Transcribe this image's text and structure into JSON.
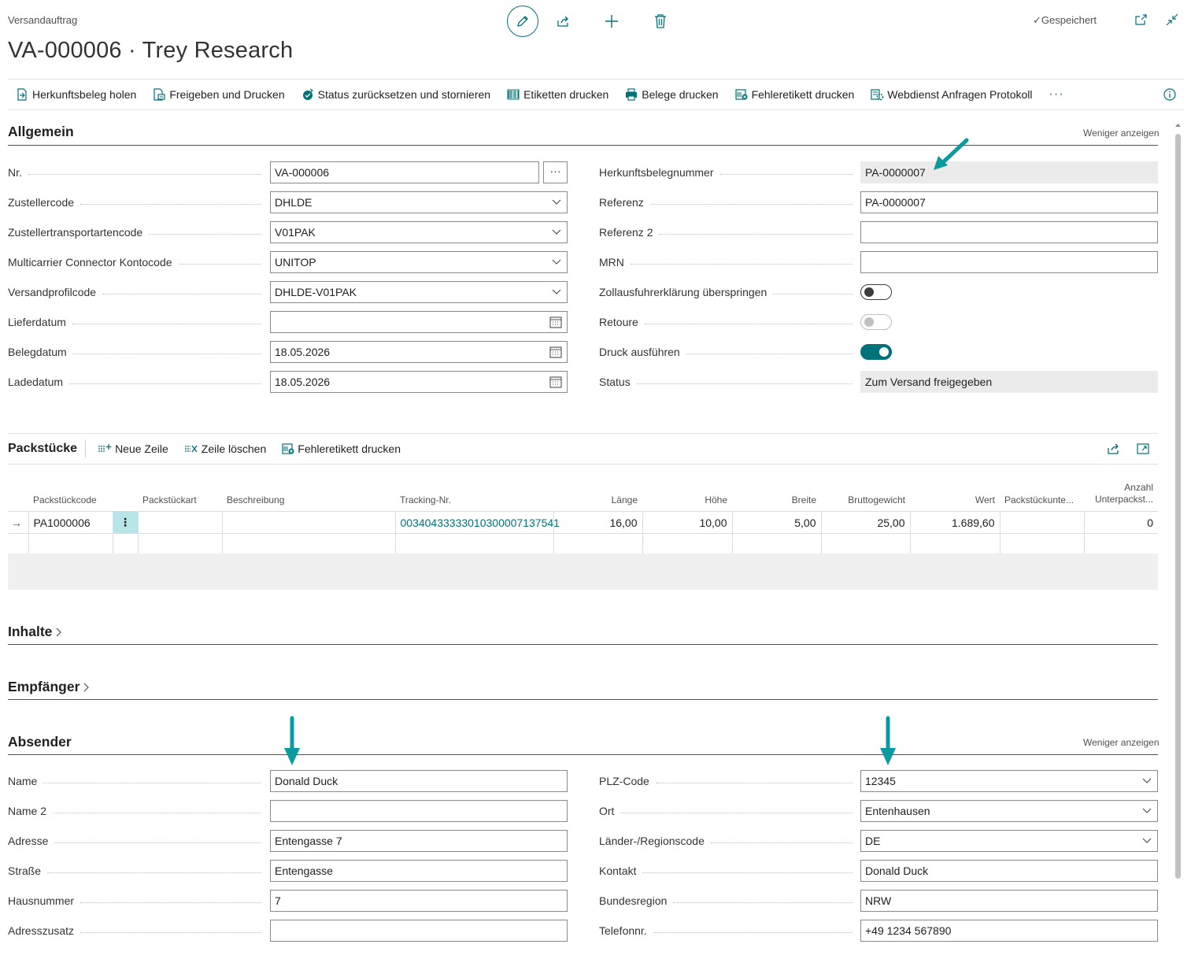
{
  "header": {
    "page_type": "Versandauftrag",
    "title": "VA-000006 · Trey Research",
    "saved_label": "Gespeichert"
  },
  "actions": [
    {
      "label": "Herkunftsbeleg holen",
      "icon": "fetch-doc-icon"
    },
    {
      "label": "Freigeben und Drucken",
      "icon": "release-print-icon"
    },
    {
      "label": "Status zurücksetzen und stornieren",
      "icon": "reset-status-icon"
    },
    {
      "label": "Etiketten drucken",
      "icon": "barcode-icon"
    },
    {
      "label": "Belege drucken",
      "icon": "printer-icon"
    },
    {
      "label": "Fehleretikett drucken",
      "icon": "error-label-icon"
    },
    {
      "label": "Webdienst Anfragen Protokoll",
      "icon": "web-log-icon"
    }
  ],
  "more_label": "···",
  "allgemein": {
    "title": "Allgemein",
    "less_label": "Weniger anzeigen",
    "left": [
      {
        "label": "Nr.",
        "value": "VA-000006",
        "type": "text-assist"
      },
      {
        "label": "Zustellercode",
        "value": "DHLDE",
        "type": "select"
      },
      {
        "label": "Zustellertransportartencode",
        "value": "V01PAK",
        "type": "select"
      },
      {
        "label": "Multicarrier Connector Kontocode",
        "value": "UNITOP",
        "type": "select"
      },
      {
        "label": "Versandprofilcode",
        "value": "DHLDE-V01PAK",
        "type": "select"
      },
      {
        "label": "Lieferdatum",
        "value": "",
        "type": "date"
      },
      {
        "label": "Belegdatum",
        "value": "18.05.2026",
        "type": "date"
      },
      {
        "label": "Ladedatum",
        "value": "18.05.2026",
        "type": "date"
      }
    ],
    "right": [
      {
        "label": "Herkunftsbelegnummer",
        "value": "PA-0000007",
        "type": "readonly"
      },
      {
        "label": "Referenz",
        "value": "PA-0000007",
        "type": "text"
      },
      {
        "label": "Referenz 2",
        "value": "",
        "type": "text"
      },
      {
        "label": "MRN",
        "value": "",
        "type": "text"
      },
      {
        "label": "Zollausfuhrerklärung überspringen",
        "value": "off",
        "type": "toggle"
      },
      {
        "label": "Retoure",
        "value": "off-disabled",
        "type": "toggle"
      },
      {
        "label": "Druck ausführen",
        "value": "on",
        "type": "toggle"
      },
      {
        "label": "Status",
        "value": "Zum Versand freigegeben",
        "type": "readonly"
      }
    ]
  },
  "packstuecke": {
    "title": "Packstücke",
    "actions": [
      {
        "label": "Neue Zeile",
        "icon": "new-line-icon"
      },
      {
        "label": "Zeile löschen",
        "icon": "delete-line-icon"
      },
      {
        "label": "Fehleretikett drucken",
        "icon": "error-label-icon"
      }
    ],
    "columns": [
      "Packstückcode",
      "Packstückart",
      "Beschreibung",
      "Tracking-Nr.",
      "Länge",
      "Höhe",
      "Breite",
      "Bruttogewicht",
      "Wert",
      "Packstückunte...",
      "Anzahl",
      "Unterpackst..."
    ],
    "rows": [
      {
        "code": "PA1000006",
        "art": "",
        "beschreibung": "",
        "tracking": "00340433333010300007137541",
        "laenge": "16,00",
        "hoehe": "10,00",
        "breite": "5,00",
        "brutto": "25,00",
        "wert": "1.689,60",
        "unter": "",
        "anzahl": "0"
      }
    ]
  },
  "inhalte": {
    "title": "Inhalte"
  },
  "empfaenger": {
    "title": "Empfänger"
  },
  "absender": {
    "title": "Absender",
    "less_label": "Weniger anzeigen",
    "left": [
      {
        "label": "Name",
        "value": "Donald Duck",
        "type": "text"
      },
      {
        "label": "Name 2",
        "value": "",
        "type": "text"
      },
      {
        "label": "Adresse",
        "value": "Entengasse 7",
        "type": "text"
      },
      {
        "label": "Straße",
        "value": "Entengasse",
        "type": "text"
      },
      {
        "label": "Hausnummer",
        "value": "7",
        "type": "text"
      },
      {
        "label": "Adresszusatz",
        "value": "",
        "type": "text"
      }
    ],
    "right": [
      {
        "label": "PLZ-Code",
        "value": "12345",
        "type": "select"
      },
      {
        "label": "Ort",
        "value": "Entenhausen",
        "type": "select"
      },
      {
        "label": "Länder-/Regionscode",
        "value": "DE",
        "type": "select"
      },
      {
        "label": "Kontakt",
        "value": "Donald Duck",
        "type": "text"
      },
      {
        "label": "Bundesregion",
        "value": "NRW",
        "type": "text"
      },
      {
        "label": "Telefonnr.",
        "value": "+49 1234 567890",
        "type": "text"
      }
    ]
  },
  "colors": {
    "accent": "#00727a",
    "annotation_arrow": "#0a9a9f"
  }
}
